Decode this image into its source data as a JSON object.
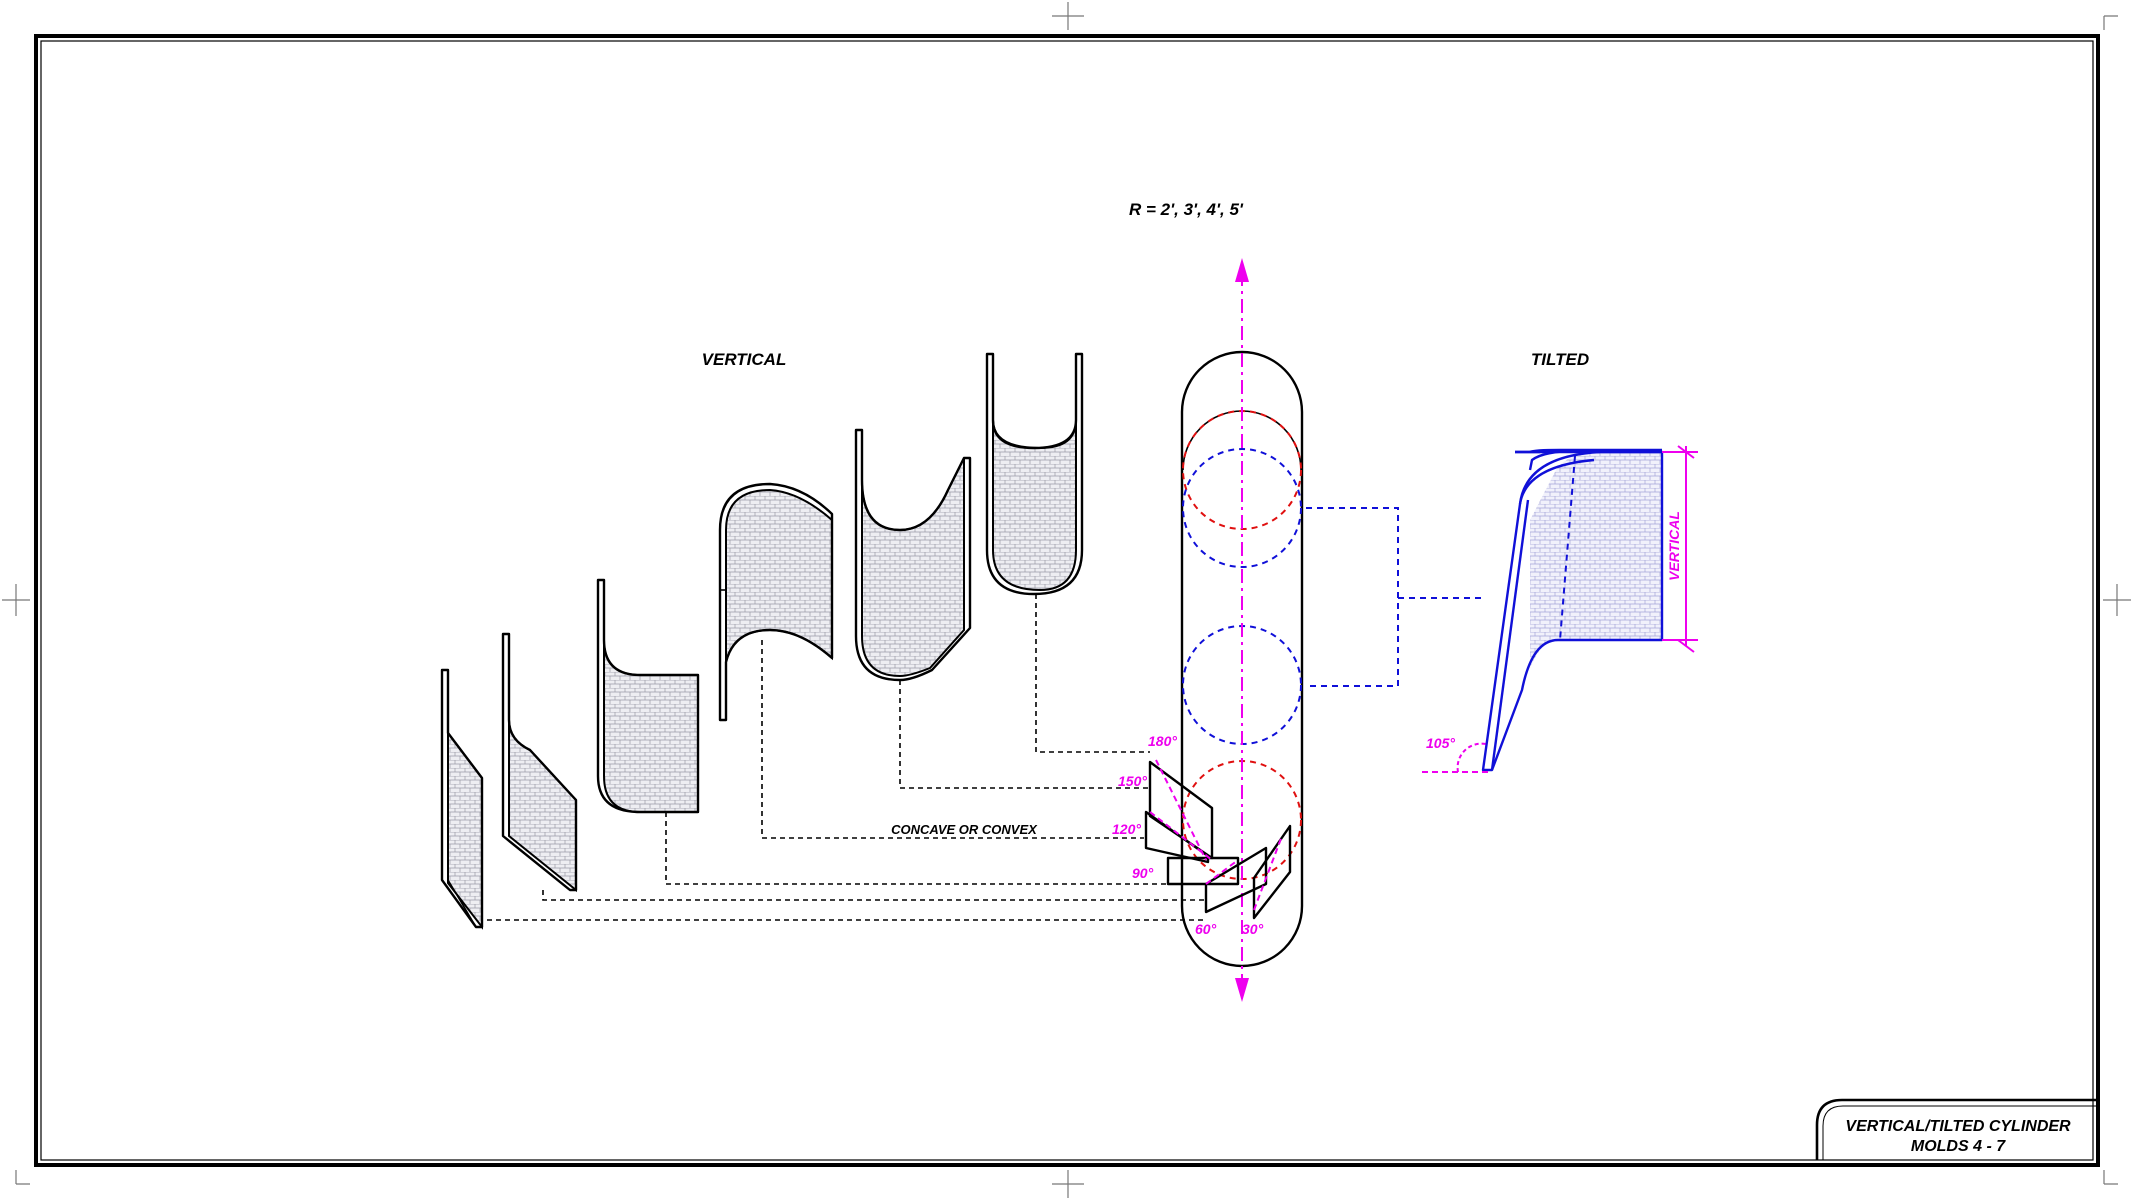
{
  "labels": {
    "radius": "R = 2', 3', 4', 5'",
    "vertical_heading": "VERTICAL",
    "tilted_heading": "TILTED",
    "concave_convex": "CONCAVE OR CONVEX",
    "angle_180": "180°",
    "angle_150": "150°",
    "angle_120": "120°",
    "angle_90": "90°",
    "angle_60": "60°",
    "angle_30": "30°",
    "angle_105": "105°",
    "vertical_dim": "VERTICAL"
  },
  "title_block": {
    "line1": "VERTICAL/TILTED CYLINDER",
    "line2": "MOLDS 4 - 7"
  },
  "colors": {
    "ink": "#000000",
    "blue": "#1010d8",
    "red": "#e01010",
    "magenta": "#ee00ee",
    "tile_fill": "#efeff3"
  }
}
